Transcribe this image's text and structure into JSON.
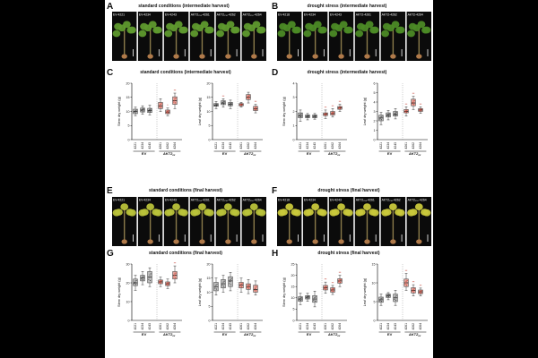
{
  "panels": {
    "A": {
      "letter": "A",
      "title": "standard conditions (intermediate harvest)",
      "photo_labels": [
        "EV-4221",
        "EV-4234",
        "EV-4243",
        "AKT2₂₁₀-4261",
        "AKT2₂₁₀-4262",
        "AKT2₂₁₀-4264"
      ],
      "photo_bg": "#0b0b0b",
      "leaf_color": "#5f9a2e"
    },
    "B": {
      "letter": "B",
      "title": "drought stress (intermediate harvest)",
      "photo_labels": [
        "EV-4218",
        "EV-4234",
        "EV-4243",
        "AKT2-4261",
        "AKT2-4262",
        "AKT2-4264"
      ],
      "photo_bg": "#0b0b0b",
      "leaf_color": "#4c8a26"
    },
    "C": {
      "letter": "C",
      "title": "standard conditions (intermediate harvest)"
    },
    "D": {
      "letter": "D",
      "title": "drought stress (intermediate harvest)"
    },
    "E": {
      "letter": "E",
      "title": "standard conditions (final harvest)",
      "photo_labels": [
        "EV-4221",
        "EV-4234",
        "EV-4243",
        "AKT2₂₁₀-4261",
        "AKT2₂₁₀-4262",
        "AKT2₂₁₀-4264"
      ],
      "photo_bg": "#0b0b0b",
      "leaf_color": "#b9c23a"
    },
    "F": {
      "letter": "F",
      "title": "drought stress (final harvest)",
      "photo_labels": [
        "EV-4218",
        "EV-4234",
        "EV-4243",
        "AKT2₂₁₀-4261",
        "AKT2₂₁₀-4262",
        "AKT2₂₁₀-4264"
      ],
      "photo_bg": "#0b0b0b",
      "leaf_color": "#c9c83b"
    },
    "G": {
      "letter": "G",
      "title": "standard conditions (final harvest)"
    },
    "H": {
      "letter": "H",
      "title": "drought stress (final harvest)"
    }
  },
  "colors": {
    "ev_box": "#bdbdbd",
    "akt_box": "#e3a49c",
    "akt_dot": "#c0392b",
    "dot": "#333333"
  },
  "groups": {
    "ev": "EV",
    "akt": "AKT2",
    "akt_sub": "ox"
  },
  "lines": [
    "4221",
    "4234",
    "4243",
    "4261",
    "4262",
    "4264"
  ],
  "chart_data": [
    {
      "id": "C-stem",
      "type": "box",
      "ylabel": "Stem dry weight (g)",
      "ylim": [
        0,
        20
      ],
      "yticks": [
        0,
        5,
        10,
        15,
        20
      ],
      "categories": [
        "4221",
        "4234",
        "4243",
        "4261",
        "4262",
        "4264"
      ],
      "series": [
        {
          "values": [
            [
              8.5,
              9.2,
              10,
              10.8,
              11.5
            ],
            [
              9,
              9.8,
              10.5,
              11.2,
              12
            ],
            [
              8.8,
              9.6,
              10.3,
              11.1,
              12.2
            ],
            [
              10,
              11,
              12,
              13.2,
              14.5
            ],
            [
              8.5,
              9.2,
              9.8,
              10.5,
              11.2
            ],
            [
              11,
              12.5,
              13.8,
              15.2,
              16.5
            ]
          ]
        }
      ],
      "marks": [
        "",
        "",
        "",
        "",
        "*",
        "**"
      ]
    },
    {
      "id": "C-leaf",
      "type": "box",
      "ylabel": "Leaf dry weight (g)",
      "ylim": [
        0,
        20
      ],
      "yticks": [
        0,
        5,
        10,
        15,
        20
      ],
      "categories": [
        "4221",
        "4234",
        "4243",
        "4261",
        "4262",
        "4264"
      ],
      "series": [
        {
          "values": [
            [
              11,
              11.8,
              12.3,
              12.8,
              13.5
            ],
            [
              11.5,
              12.4,
              13,
              13.8,
              14.5
            ],
            [
              11,
              12,
              12.6,
              13.2,
              14
            ],
            [
              11.5,
              12,
              12.4,
              12.8,
              13.2
            ],
            [
              13,
              14.2,
              15,
              16,
              16.8
            ],
            [
              9.5,
              10.3,
              11,
              11.8,
              12.5
            ]
          ]
        }
      ],
      "marks": [
        "",
        "**",
        "",
        "",
        "",
        "**"
      ]
    },
    {
      "id": "D-stem",
      "type": "box",
      "ylabel": "Stem dry weight (g)",
      "ylim": [
        0,
        4
      ],
      "yticks": [
        0,
        1,
        2,
        3,
        4
      ],
      "categories": [
        "4221",
        "4234",
        "4243",
        "4261",
        "4262",
        "4264"
      ],
      "series": [
        {
          "values": [
            [
              1.3,
              1.55,
              1.7,
              1.9,
              2.1
            ],
            [
              1.4,
              1.55,
              1.65,
              1.75,
              1.85
            ],
            [
              1.45,
              1.55,
              1.65,
              1.75,
              1.85
            ],
            [
              1.5,
              1.7,
              1.8,
              1.9,
              2.1
            ],
            [
              1.6,
              1.75,
              1.85,
              2.0,
              2.2
            ],
            [
              2.0,
              2.15,
              2.25,
              2.35,
              2.5
            ]
          ]
        }
      ],
      "marks": [
        "",
        "",
        "",
        "**",
        "**",
        "**"
      ]
    },
    {
      "id": "D-leaf",
      "type": "box",
      "ylabel": "Leaf dry weight (g)",
      "ylim": [
        0,
        6
      ],
      "yticks": [
        0,
        1,
        2,
        3,
        4,
        5,
        6
      ],
      "categories": [
        "4221",
        "4234",
        "4243",
        "4261",
        "4262",
        "4264"
      ],
      "series": [
        {
          "values": [
            [
              1.6,
              2.0,
              2.3,
              2.6,
              2.9
            ],
            [
              2.1,
              2.4,
              2.6,
              2.85,
              3.1
            ],
            [
              2.2,
              2.5,
              2.7,
              3.0,
              3.3
            ],
            [
              2.5,
              2.85,
              3.0,
              3.2,
              3.5
            ],
            [
              3.2,
              3.6,
              3.9,
              4.3,
              4.6
            ],
            [
              2.8,
              3.0,
              3.15,
              3.3,
              3.5
            ]
          ]
        }
      ],
      "marks": [
        "",
        "",
        "",
        "**",
        "**",
        "**"
      ]
    },
    {
      "id": "G-stem",
      "type": "box",
      "ylabel": "Stem dry weight (g)",
      "ylim": [
        0,
        30
      ],
      "yticks": [
        0,
        10,
        20,
        30
      ],
      "categories": [
        "4221",
        "4234",
        "4243",
        "4261",
        "4262",
        "4264"
      ],
      "series": [
        {
          "values": [
            [
              16,
              18.5,
              20,
              22,
              24
            ],
            [
              19,
              21,
              22.5,
              24,
              26
            ],
            [
              18,
              20,
              23,
              26,
              28
            ],
            [
              18,
              19.5,
              20.5,
              21.5,
              23
            ],
            [
              17,
              18.5,
              19.5,
              20.5,
              22
            ],
            [
              20,
              22,
              24,
              26,
              29
            ]
          ]
        }
      ],
      "marks": [
        "",
        "",
        "",
        "",
        "",
        "**"
      ]
    },
    {
      "id": "G-leaf",
      "type": "box",
      "ylabel": "Leaf dry weight (g)",
      "ylim": [
        0,
        20
      ],
      "yticks": [
        0,
        5,
        10,
        15,
        20
      ],
      "categories": [
        "4221",
        "4234",
        "4243",
        "4261",
        "4262",
        "4264"
      ],
      "series": [
        {
          "values": [
            [
              9,
              10.5,
              12,
              13.5,
              15
            ],
            [
              10,
              11.5,
              13,
              14.5,
              16
            ],
            [
              10.5,
              12,
              14,
              15.5,
              17
            ],
            [
              10,
              11.5,
              12.5,
              13.5,
              15
            ],
            [
              9.5,
              11,
              12,
              13,
              14.5
            ],
            [
              9,
              10,
              11,
              12.5,
              14
            ]
          ]
        }
      ],
      "marks": [
        "",
        "",
        "",
        "",
        "",
        ""
      ]
    },
    {
      "id": "H-stem",
      "type": "box",
      "ylabel": "Stem dry weight (g)",
      "ylim": [
        0,
        25
      ],
      "yticks": [
        0,
        5,
        10,
        15,
        20,
        25
      ],
      "categories": [
        "4221",
        "4234",
        "4243",
        "4261",
        "4262",
        "4264"
      ],
      "series": [
        {
          "values": [
            [
              7,
              8.5,
              9.5,
              10.5,
              12
            ],
            [
              8.5,
              9.5,
              10.3,
              11,
              12
            ],
            [
              6,
              8,
              9.5,
              11,
              13
            ],
            [
              12,
              13.5,
              14.5,
              15.5,
              17
            ],
            [
              11.5,
              12.5,
              13.5,
              14.5,
              15.5
            ],
            [
              15,
              16.5,
              17.5,
              18.5,
              20
            ]
          ]
        }
      ],
      "marks": [
        "",
        "",
        "",
        "**",
        "**",
        "**"
      ]
    },
    {
      "id": "H-leaf",
      "type": "box",
      "ylabel": "Leaf dry weight (g)",
      "ylim": [
        0,
        15
      ],
      "yticks": [
        0,
        5,
        10,
        15
      ],
      "categories": [
        "4221",
        "4234",
        "4243",
        "4261",
        "4262",
        "4264"
      ],
      "series": [
        {
          "values": [
            [
              4,
              4.8,
              5.5,
              6.2,
              7
            ],
            [
              5.5,
              6.1,
              6.6,
              7,
              7.4
            ],
            [
              4,
              5,
              6,
              7,
              8
            ],
            [
              8,
              9,
              10,
              11,
              12.5
            ],
            [
              6.5,
              7.3,
              8,
              8.7,
              9.5
            ],
            [
              6.5,
              7.1,
              7.6,
              8.1,
              8.6
            ]
          ]
        }
      ],
      "marks": [
        "",
        "",
        "",
        "**",
        "**",
        "**"
      ]
    }
  ]
}
